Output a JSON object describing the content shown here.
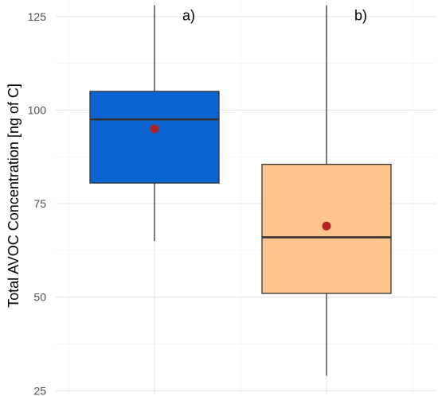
{
  "chart_data": {
    "type": "boxplot",
    "ylabel": "Total AVOC Concentration [ng of C]",
    "xlabel": "",
    "ylim": [
      24,
      129
    ],
    "yticks": [
      25,
      50,
      75,
      100,
      125
    ],
    "grid": true,
    "legend": "none",
    "boxes": [
      {
        "annotation": "a)",
        "whisker_low": 65,
        "q1": 80.5,
        "median": 97.5,
        "q3": 105,
        "whisker_high": 128,
        "mean": 95,
        "fill": "#0a64d2"
      },
      {
        "annotation": "b)",
        "whisker_low": 29,
        "q1": 51,
        "median": 66,
        "q3": 85.5,
        "whisker_high": 128,
        "mean": 69,
        "fill": "#fdc48c"
      }
    ],
    "mean_color": "#b22222"
  }
}
